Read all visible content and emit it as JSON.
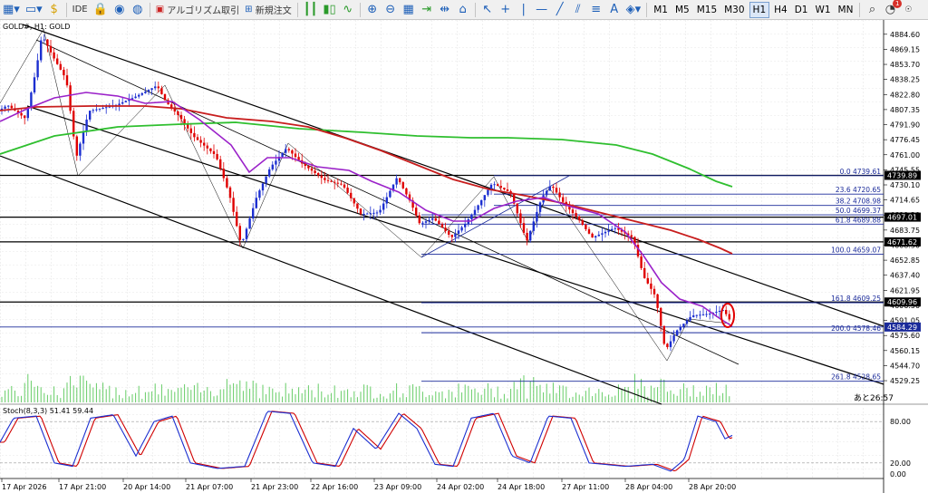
{
  "toolbar": {
    "ide": "IDE",
    "algo": "アルゴリズム取引",
    "neworder": "新規注文",
    "timeframes": [
      "M1",
      "M5",
      "M15",
      "M30",
      "H1",
      "H4",
      "D1",
      "W1",
      "MN"
    ],
    "active_tf": "H1",
    "notif_count": "1"
  },
  "chart": {
    "title": "GOLD#, H1:  GOLD",
    "stoch_label": "Stoch(8,3,3) 51.41 59.44",
    "countdown": "あと26:57",
    "price_labels": [
      "4884.60",
      "4869.15",
      "4853.70",
      "4838.25",
      "4822.80",
      "4807.35",
      "4791.90",
      "4776.45",
      "4761.00",
      "4745.55",
      "4730.10",
      "4714.65",
      "4699.20",
      "4683.75",
      "4668.30",
      "4652.85",
      "4637.40",
      "4621.95",
      "4606.50",
      "4591.05",
      "4575.60",
      "4560.15",
      "4544.70",
      "4529.25"
    ],
    "price_range": [
      4520,
      4890
    ],
    "tagged_levels": [
      {
        "label": "4739.89",
        "price": 4739.89,
        "bg": "#000000"
      },
      {
        "label": "4697.01",
        "price": 4697.01,
        "bg": "#000000"
      },
      {
        "label": "4671.62",
        "price": 4671.62,
        "bg": "#000000"
      },
      {
        "label": "4609.96",
        "price": 4609.96,
        "bg": "#000000"
      },
      {
        "label": "4584.29",
        "price": 4584.29,
        "bg": "#1a2a9a"
      }
    ],
    "fib_levels": [
      {
        "label": "0.0  4739.61",
        "price": 4739.61
      },
      {
        "label": "23.6  4720.65",
        "price": 4720.65
      },
      {
        "label": "38.2  4708.98",
        "price": 4708.98
      },
      {
        "label": "50.0  4699.37",
        "price": 4699.37
      },
      {
        "label": "61.8  4689.88",
        "price": 4689.88
      },
      {
        "label": "100.0  4659.07",
        "price": 4659.07
      },
      {
        "label": "161.8  4609.25",
        "price": 4609.25
      },
      {
        "label": "200.0  4578.46",
        "price": 4578.46
      },
      {
        "label": "261.8  4528.65",
        "price": 4528.65
      }
    ],
    "stoch_levels": [
      "80.00",
      "20.00",
      "0.00"
    ],
    "time_labels": [
      "17 Apr 2026",
      "17 Apr 21:00",
      "20 Apr 14:00",
      "21 Apr 07:00",
      "21 Apr 23:00",
      "22 Apr 16:00",
      "23 Apr 09:00",
      "24 Apr 02:00",
      "24 Apr 18:00",
      "27 Apr 11:00",
      "28 Apr 04:00",
      "28 Apr 20:00"
    ],
    "colors": {
      "bull": "#1c2fd0",
      "bear": "#e00000",
      "ma_fast": "#9b22c9",
      "ma_mid": "#c81e1e",
      "ma_slow": "#2fbf2f",
      "fib": "#1a2a9a",
      "stoch_main": "#1c2fd0",
      "stoch_signal": "#d00000",
      "volume": "#66cc66"
    }
  }
}
